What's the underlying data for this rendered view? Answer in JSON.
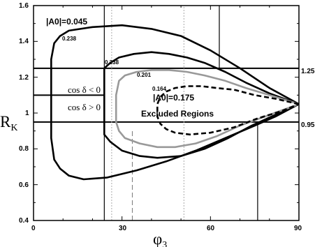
{
  "chart_data": {
    "type": "line",
    "x_range": [
      0,
      90
    ],
    "y_range": [
      0.4,
      1.6
    ],
    "xticks": [
      "0",
      "30",
      "60",
      "90"
    ],
    "yticks": [
      "0.4",
      "0.6",
      "0.8",
      "1",
      "1.2",
      "1.4",
      "1.6"
    ],
    "xlabel": "φ3",
    "ylabel": "RK",
    "horizontal_lines": [
      {
        "y": 1.25,
        "label": "1.25",
        "stroke": "#000000",
        "style": "solid"
      },
      {
        "y": 0.95,
        "label": "0.95",
        "stroke": "#000000",
        "style": "solid"
      },
      {
        "y": 1.1,
        "x_range": [
          0,
          24
        ],
        "stroke": "#000000",
        "style": "solid"
      }
    ],
    "vertical_lines": [
      {
        "x": 24,
        "y_range": [
          0.4,
          1.6
        ],
        "stroke": "#000000",
        "style": "solid"
      },
      {
        "x": 63,
        "y_range": [
          1.25,
          1.6
        ],
        "stroke": "#000000",
        "style": "solid"
      },
      {
        "x": 76,
        "y_range": [
          0.4,
          0.95
        ],
        "stroke": "#000000",
        "style": "solid"
      },
      {
        "x": 26.5,
        "y_range": [
          0.4,
          1.6
        ],
        "stroke": "#aaaaaa",
        "style": "dotted"
      },
      {
        "x": 51,
        "y_range": [
          0.4,
          1.6
        ],
        "stroke": "#aaaaaa",
        "style": "dotted"
      },
      {
        "x": 33.5,
        "y_range": [
          0.4,
          0.9
        ],
        "stroke": "#777777",
        "style": "dashed"
      }
    ],
    "series": [
      {
        "stroke": "#000000",
        "style": "solid",
        "points": [
          [
            90,
            1.05
          ],
          [
            80,
            1.14
          ],
          [
            70,
            1.25
          ],
          [
            60,
            1.35
          ],
          [
            50,
            1.43
          ],
          [
            40,
            1.47
          ],
          [
            30,
            1.49
          ],
          [
            20,
            1.48
          ],
          [
            12,
            1.46
          ],
          [
            9,
            1.43
          ],
          [
            7,
            1.39
          ],
          [
            6,
            1.3
          ],
          [
            6,
            0.86
          ],
          [
            7,
            0.74
          ],
          [
            9,
            0.69
          ],
          [
            12,
            0.65
          ],
          [
            17,
            0.63
          ],
          [
            25,
            0.64
          ],
          [
            35,
            0.68
          ],
          [
            45,
            0.73
          ],
          [
            55,
            0.79
          ],
          [
            65,
            0.86
          ],
          [
            75,
            0.93
          ],
          [
            82,
            0.98
          ],
          [
            90,
            1.05
          ]
        ]
      },
      {
        "stroke": "#000000",
        "style": "solid",
        "points": [
          [
            90,
            1.05
          ],
          [
            80,
            1.11
          ],
          [
            72,
            1.17
          ],
          [
            65,
            1.23
          ],
          [
            58,
            1.28
          ],
          [
            52,
            1.31
          ],
          [
            46,
            1.33
          ],
          [
            40,
            1.34
          ],
          [
            34,
            1.33
          ],
          [
            29,
            1.31
          ],
          [
            26,
            1.28
          ],
          [
            24,
            1.25
          ],
          [
            24,
            0.88
          ],
          [
            26,
            0.84
          ],
          [
            30,
            0.79
          ],
          [
            36,
            0.76
          ],
          [
            42,
            0.75
          ],
          [
            50,
            0.76
          ],
          [
            58,
            0.8
          ],
          [
            66,
            0.86
          ],
          [
            74,
            0.93
          ],
          [
            82,
            0.99
          ],
          [
            90,
            1.05
          ]
        ]
      },
      {
        "stroke": "#999999",
        "style": "solid",
        "points": [
          [
            90,
            1.05
          ],
          [
            80,
            1.1
          ],
          [
            72,
            1.14
          ],
          [
            65,
            1.18
          ],
          [
            58,
            1.21
          ],
          [
            52,
            1.23
          ],
          [
            46,
            1.24
          ],
          [
            40,
            1.24
          ],
          [
            35,
            1.23
          ],
          [
            31,
            1.21
          ],
          [
            29,
            1.18
          ],
          [
            28,
            1.1
          ],
          [
            28,
            0.95
          ],
          [
            29,
            0.9
          ],
          [
            31,
            0.86
          ],
          [
            36,
            0.83
          ],
          [
            42,
            0.81
          ],
          [
            48,
            0.81
          ],
          [
            55,
            0.83
          ],
          [
            62,
            0.87
          ],
          [
            70,
            0.93
          ],
          [
            80,
            0.99
          ],
          [
            90,
            1.05
          ]
        ]
      },
      {
        "stroke": "#000000",
        "style": "dashed",
        "points": [
          [
            90,
            1.05
          ],
          [
            82,
            1.08
          ],
          [
            75,
            1.1
          ],
          [
            68,
            1.13
          ],
          [
            62,
            1.14
          ],
          [
            57,
            1.15
          ],
          [
            52,
            1.15
          ],
          [
            48,
            1.14
          ],
          [
            45,
            1.12
          ],
          [
            43,
            1.09
          ],
          [
            42,
            1.05
          ],
          [
            42,
            0.98
          ],
          [
            43,
            0.94
          ],
          [
            45,
            0.91
          ],
          [
            48,
            0.89
          ],
          [
            53,
            0.88
          ],
          [
            60,
            0.89
          ],
          [
            68,
            0.92
          ],
          [
            76,
            0.97
          ],
          [
            84,
            1.01
          ],
          [
            90,
            1.05
          ]
        ]
      }
    ],
    "annotations": {
      "a0_outer": "|A0|=0.045",
      "a0_inner": "|A0|=0.175",
      "v_0238_a": "0.238",
      "v_0238_b": "0.238",
      "v_0201": "0.201",
      "v_0164": "0.164",
      "cos_neg": "cos δ < 0",
      "cos_pos": "cos δ > 0",
      "excluded": "Excluded Regions"
    }
  }
}
